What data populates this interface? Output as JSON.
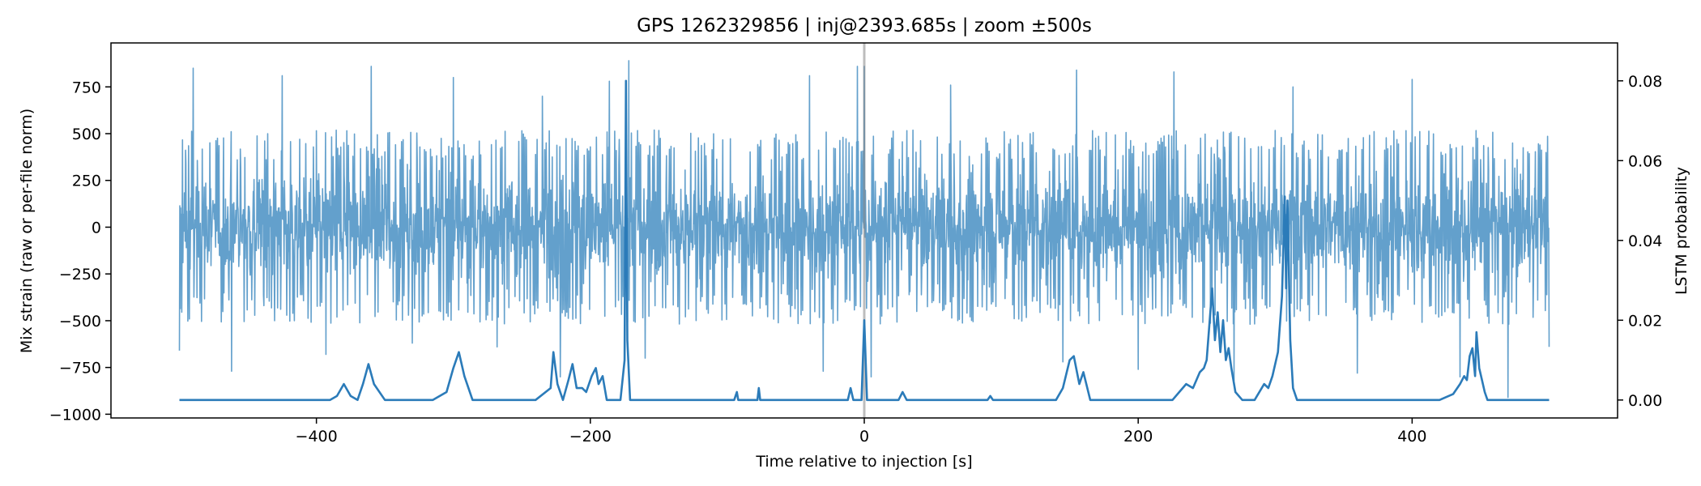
{
  "chart_data": {
    "type": "line",
    "title": "GPS 1262329856 | inj@2393.685s | zoom ±500s",
    "xlabel": "Time relative to injection [s]",
    "ylabel_left": "Mix strain (raw or per-file norm)",
    "ylabel_right": "LSTM probability",
    "xlim": [
      -550,
      550
    ],
    "ylim_left": [
      -1020,
      985
    ],
    "ylim_right": [
      -0.0045,
      0.0895
    ],
    "x_ticks": [
      -400,
      -200,
      0,
      200,
      400
    ],
    "x_tick_labels": [
      "−400",
      "−200",
      "0",
      "200",
      "400"
    ],
    "y_left_ticks": [
      750,
      500,
      250,
      0,
      -250,
      -500,
      -750,
      -1000
    ],
    "y_left_tick_labels": [
      "750",
      "500",
      "250",
      "0",
      "−250",
      "−500",
      "−750",
      "−1000"
    ],
    "y_right_ticks": [
      0.08,
      0.06,
      0.04,
      0.02,
      0.0
    ],
    "y_right_tick_labels": [
      "0.08",
      "0.06",
      "0.04",
      "0.02",
      "0.00"
    ],
    "injection_marker_x": 0,
    "colors": {
      "strain": "#5b9bc9",
      "probability": "#2b7bb9",
      "marker": "#888888"
    },
    "series": [
      {
        "name": "",
        "axis": "left",
        "style": "dense-noise",
        "x_range": [
          -500,
          500
        ],
        "typical_envelope": [
          -480,
          480
        ],
        "extremes": [
          {
            "x": -500,
            "y": 520
          },
          {
            "x": -500,
            "y": -660
          },
          {
            "x": -490,
            "y": 850
          },
          {
            "x": -462,
            "y": -770
          },
          {
            "x": -425,
            "y": 810
          },
          {
            "x": -393,
            "y": -680
          },
          {
            "x": -360,
            "y": 860
          },
          {
            "x": -330,
            "y": -620
          },
          {
            "x": -300,
            "y": 800
          },
          {
            "x": -268,
            "y": -640
          },
          {
            "x": -235,
            "y": 700
          },
          {
            "x": -222,
            "y": -800
          },
          {
            "x": -186,
            "y": 780
          },
          {
            "x": -172,
            "y": 890
          },
          {
            "x": -160,
            "y": -700
          },
          {
            "x": -40,
            "y": 810
          },
          {
            "x": -30,
            "y": -770
          },
          {
            "x": -5,
            "y": 860
          },
          {
            "x": 0,
            "y": 860
          },
          {
            "x": 5,
            "y": -800
          },
          {
            "x": 63,
            "y": 760
          },
          {
            "x": 145,
            "y": -720
          },
          {
            "x": 155,
            "y": 840
          },
          {
            "x": 200,
            "y": -760
          },
          {
            "x": 226,
            "y": 830
          },
          {
            "x": 270,
            "y": -820
          },
          {
            "x": 313,
            "y": 750
          },
          {
            "x": 360,
            "y": -780
          },
          {
            "x": 400,
            "y": 790
          },
          {
            "x": 435,
            "y": -800
          },
          {
            "x": 470,
            "y": 840
          },
          {
            "x": 470,
            "y": -910
          },
          {
            "x": 500,
            "y": 460
          },
          {
            "x": 500,
            "y": -640
          }
        ]
      },
      {
        "name": "",
        "axis": "right",
        "style": "line",
        "x": [
          -500,
          -390,
          -385,
          -380,
          -375,
          -370,
          -366,
          -362,
          -358,
          -350,
          -315,
          -305,
          -300,
          -296,
          -292,
          -286,
          -240,
          -229,
          -227,
          -224,
          -220,
          -216,
          -213,
          -210,
          -206,
          -203,
          -199,
          -196,
          -194,
          -191,
          -188,
          -178,
          -175,
          -174,
          -173,
          -171,
          -169,
          -160,
          -95,
          -93,
          -92,
          -90,
          -82,
          -78,
          -77,
          -76,
          -70,
          -12,
          -10,
          -8,
          -2,
          0,
          2,
          6,
          25,
          28,
          31,
          90,
          92,
          94,
          140,
          145,
          150,
          153,
          157,
          160,
          165,
          225,
          230,
          235,
          240,
          245,
          248,
          250,
          254,
          256,
          258,
          260,
          262,
          264,
          266,
          268,
          271,
          276,
          285,
          292,
          295,
          298,
          302,
          305,
          307,
          308,
          309,
          311,
          313,
          316,
          320,
          390,
          420,
          430,
          435,
          438,
          440,
          442,
          444,
          446,
          447,
          449,
          451,
          453,
          455,
          460,
          500
        ],
        "y": [
          0.0,
          0.0,
          0.001,
          0.004,
          0.001,
          0.0,
          0.004,
          0.009,
          0.004,
          0.0,
          0.0,
          0.002,
          0.008,
          0.012,
          0.006,
          0.0,
          0.0,
          0.003,
          0.012,
          0.004,
          0.0,
          0.005,
          0.009,
          0.003,
          0.003,
          0.002,
          0.006,
          0.008,
          0.004,
          0.006,
          0.0,
          0.0,
          0.01,
          0.08,
          0.015,
          0.0,
          0.0,
          0.0,
          0.0,
          0.002,
          0.0,
          0.0,
          0.0,
          0.0,
          0.003,
          0.0,
          0.0,
          0.0,
          0.003,
          0.0,
          0.0,
          0.02,
          0.0,
          0.0,
          0.0,
          0.002,
          0.0,
          0.0,
          0.001,
          0.0,
          0.0,
          0.003,
          0.01,
          0.011,
          0.004,
          0.007,
          0.0,
          0.0,
          0.002,
          0.004,
          0.003,
          0.007,
          0.008,
          0.01,
          0.028,
          0.015,
          0.022,
          0.012,
          0.02,
          0.01,
          0.013,
          0.008,
          0.002,
          0.0,
          0.0,
          0.004,
          0.003,
          0.006,
          0.012,
          0.026,
          0.051,
          0.028,
          0.05,
          0.015,
          0.003,
          0.0,
          0.0,
          0.0,
          0.0,
          0.0015,
          0.004,
          0.006,
          0.005,
          0.011,
          0.013,
          0.006,
          0.017,
          0.008,
          0.005,
          0.002,
          0.0,
          0.0,
          0.0
        ]
      }
    ]
  }
}
